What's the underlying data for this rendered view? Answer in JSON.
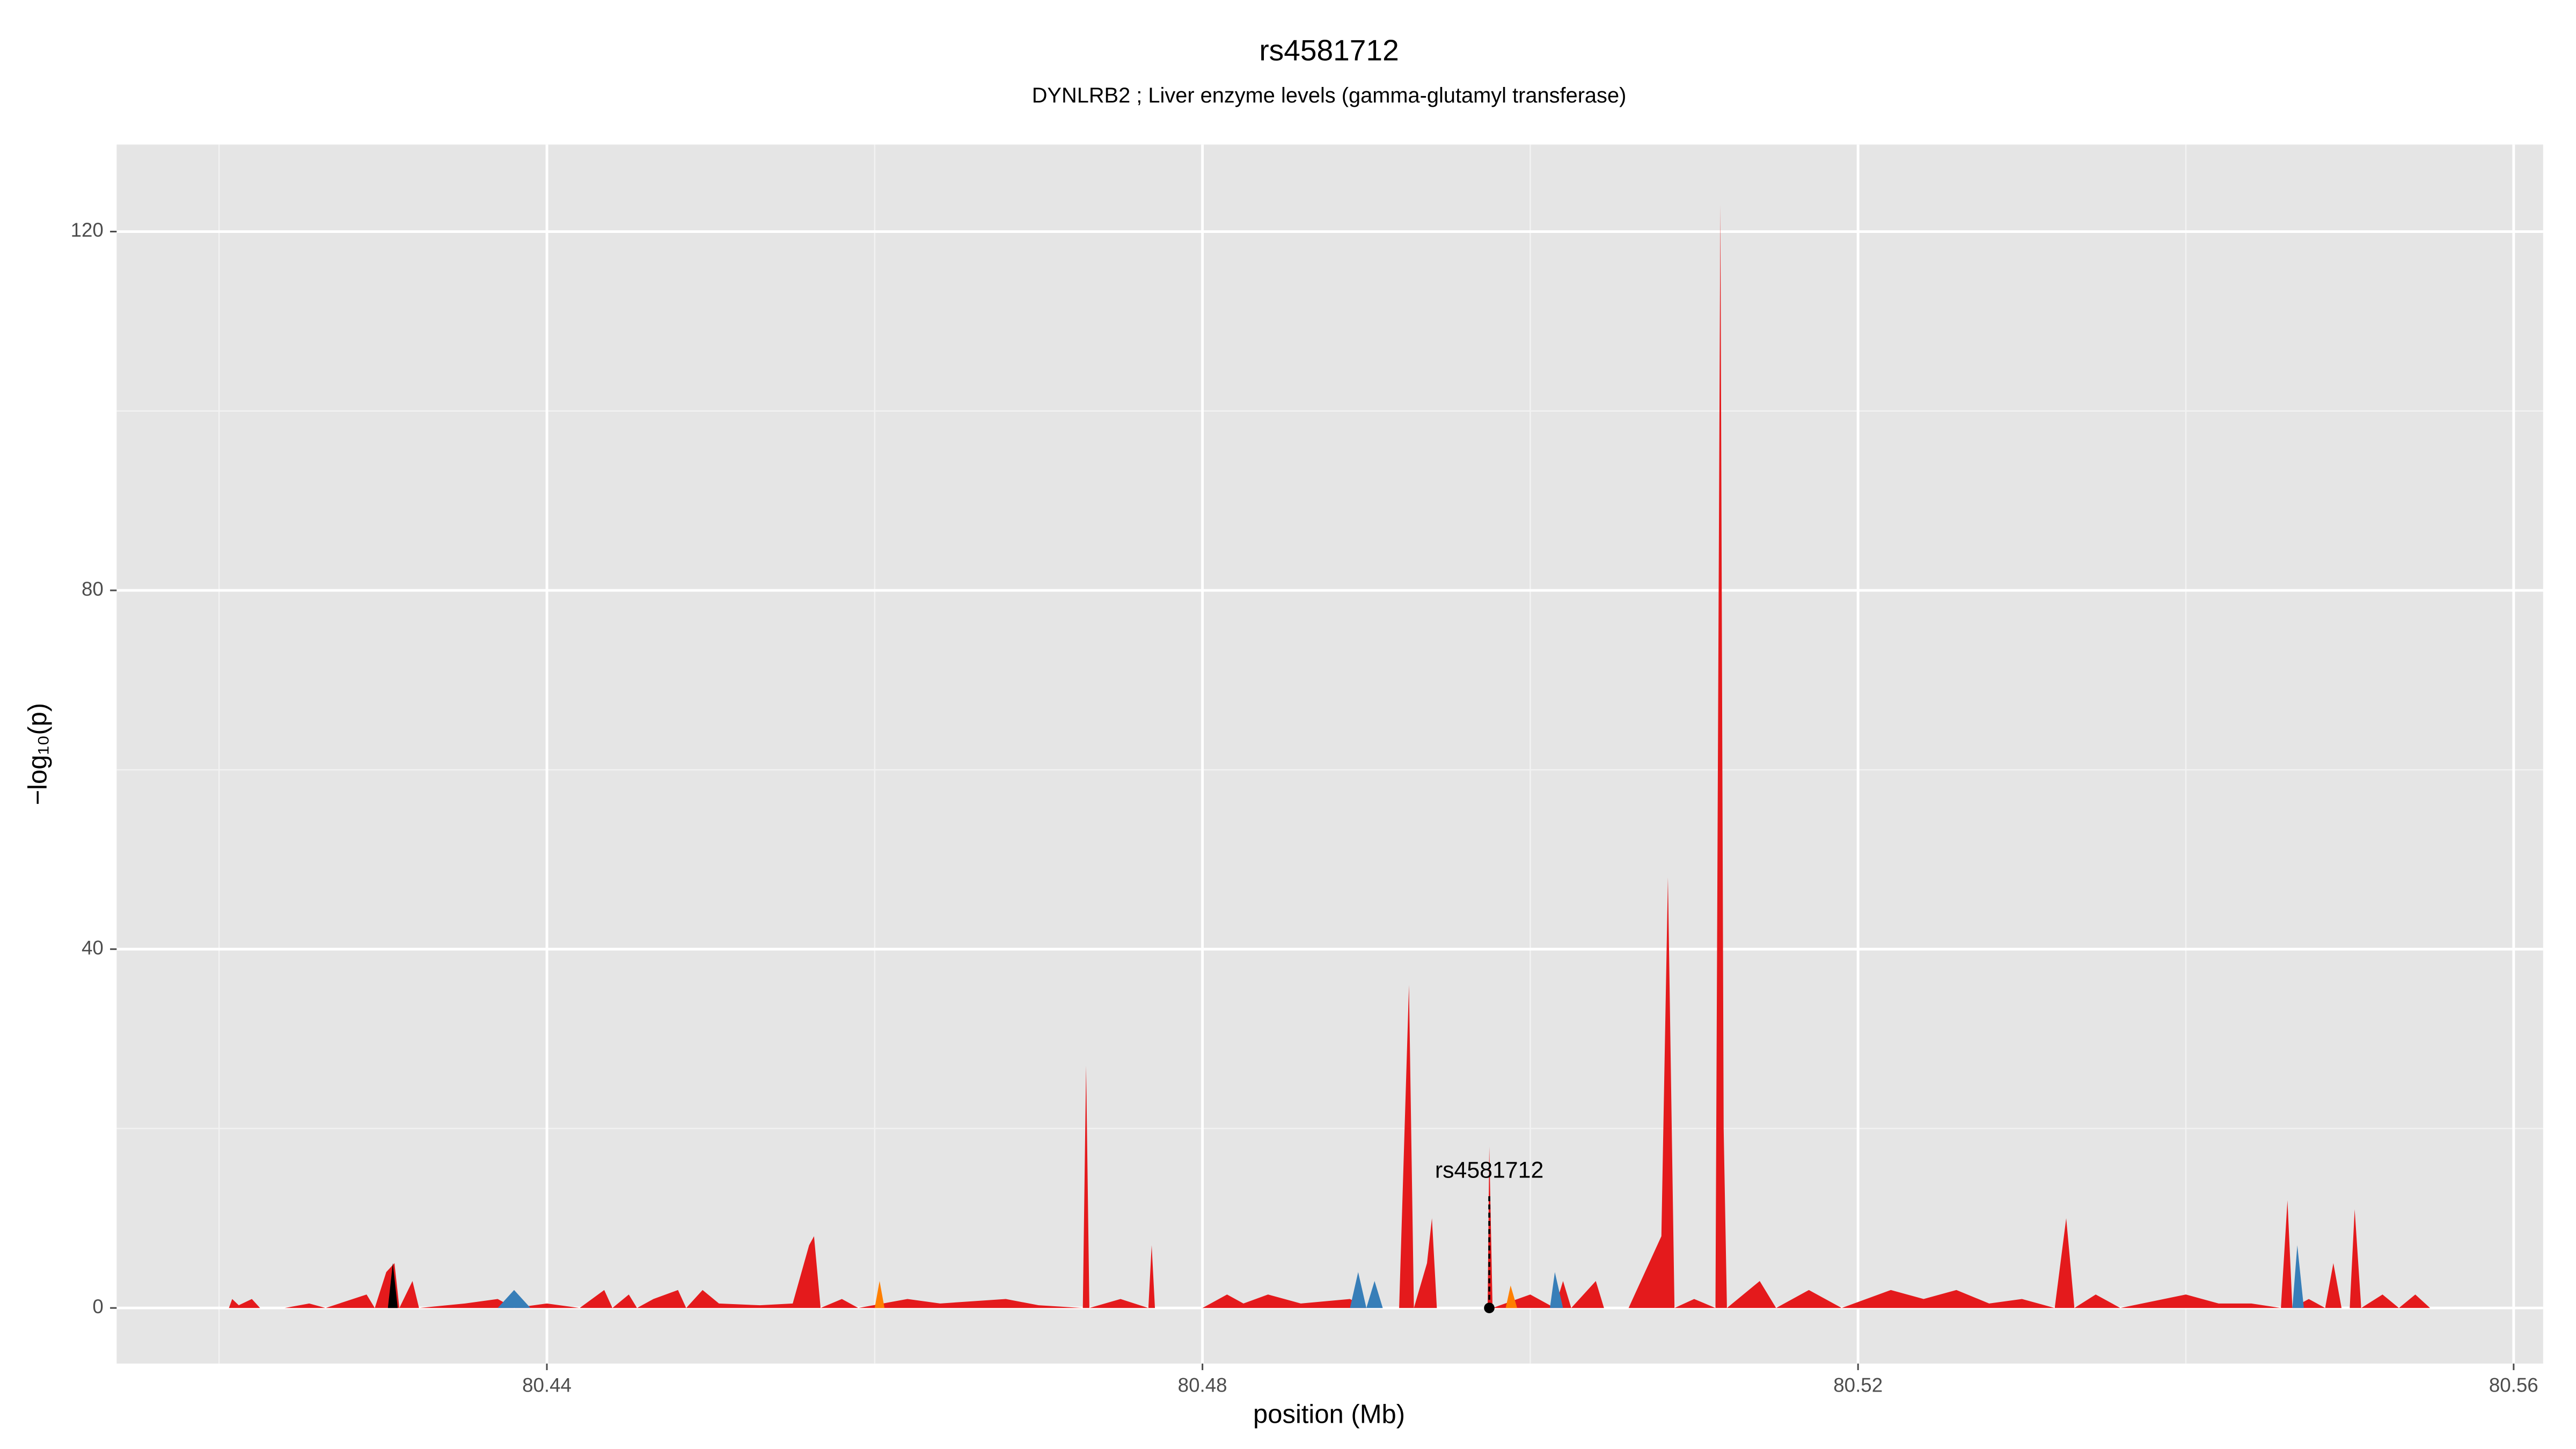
{
  "chart_data": {
    "type": "area",
    "title": "rs4581712",
    "subtitle": "DYNLRB2 ; Liver enzyme levels (gamma-glutamyl transferase)",
    "x_label": "position (Mb)",
    "y_label": "−log₁₀(p)",
    "xlim": [
      80.41375,
      80.5618
    ],
    "ylim": [
      -6.2,
      129.7
    ],
    "xticks": [
      80.44,
      80.48,
      80.52,
      80.56
    ],
    "yticks": [
      0,
      40,
      80,
      120
    ],
    "xminorticks": [
      80.42,
      80.46,
      80.5,
      80.54
    ],
    "yminorticks": [
      20,
      60,
      100
    ],
    "grid": true,
    "series": [
      {
        "color": "#e41a1c",
        "x": [
          80.4206,
          80.4208,
          80.4212,
          80.422,
          80.4225,
          80.424,
          80.4255,
          80.4265,
          80.429,
          80.4295,
          80.4302,
          80.4307,
          80.431,
          80.4318,
          80.4322,
          80.435,
          80.437,
          80.438,
          80.44,
          80.442,
          80.4435,
          80.444,
          80.445,
          80.4455,
          80.4465,
          80.448,
          80.4485,
          80.4495,
          80.4505,
          80.453,
          80.455,
          80.456,
          80.4563,
          80.4567,
          80.458,
          80.459,
          80.462,
          80.464,
          80.468,
          80.47,
          80.4727,
          80.4729,
          80.4731,
          80.475,
          80.4767,
          80.4769,
          80.4771,
          80.48,
          80.4815,
          80.4825,
          80.484,
          80.486,
          80.489,
          80.49,
          80.492,
          80.4925,
          80.4926,
          80.4929,
          80.4937,
          80.494,
          80.4943,
          80.496,
          80.4974,
          80.4975,
          80.4977,
          80.5,
          80.5015,
          80.502,
          80.5025,
          80.504,
          80.5045,
          80.506,
          80.508,
          80.5084,
          80.5088,
          80.51,
          80.5113,
          80.5116,
          80.5118,
          80.512,
          80.514,
          80.515,
          80.517,
          80.519,
          80.522,
          80.524,
          80.526,
          80.528,
          80.53,
          80.532,
          80.5327,
          80.5332,
          80.5345,
          80.536,
          80.54,
          80.542,
          80.544,
          80.5458,
          80.5462,
          80.5465,
          80.5475,
          80.5485,
          80.549,
          80.5495,
          80.55,
          80.5503,
          80.5507,
          80.552,
          80.553,
          80.554,
          80.5549
        ],
        "values": [
          0,
          1,
          0.3,
          1,
          0,
          0,
          0.5,
          0,
          1.5,
          0,
          4,
          5,
          0,
          3,
          0,
          0.5,
          1,
          0,
          0.5,
          0,
          2,
          0,
          1.5,
          0,
          1,
          2,
          0,
          2,
          0.5,
          0.3,
          0.5,
          7,
          8,
          0,
          1,
          0,
          1,
          0.5,
          1,
          0.3,
          0,
          27,
          0,
          1,
          0,
          7,
          0,
          0,
          1.5,
          0.5,
          1.5,
          0.5,
          1,
          0,
          0,
          30,
          36,
          0,
          5,
          10,
          0,
          0,
          0,
          18,
          0,
          1.5,
          0,
          3,
          0,
          3,
          0,
          0,
          8,
          48,
          0,
          1,
          0,
          123,
          20,
          0,
          3,
          0,
          2,
          0,
          2,
          1,
          2,
          0.5,
          1,
          0,
          10,
          0,
          1.5,
          0,
          1.5,
          0.5,
          0.5,
          0,
          12,
          0,
          1,
          0,
          5,
          0,
          0,
          11,
          0,
          1.5,
          0,
          1.5,
          0
        ]
      },
      {
        "color": "#377eb8",
        "x": [
          80.437,
          80.438,
          80.439,
          80.489,
          80.4895,
          80.49,
          80.4905,
          80.491,
          80.5012,
          80.5015,
          80.502,
          80.5465,
          80.5468,
          80.5472
        ],
        "values": [
          0,
          2,
          0,
          0,
          4,
          0,
          3,
          0,
          0,
          4,
          0,
          0,
          7,
          0
        ]
      },
      {
        "color": "#ff7f00",
        "x": [
          80.46,
          80.4603,
          80.4606,
          80.4985,
          80.4988,
          80.4992
        ],
        "values": [
          0,
          3,
          0,
          0,
          2.5,
          0
        ]
      },
      {
        "color": "#000000",
        "x": [
          80.4303,
          80.4306,
          80.4309
        ],
        "values": [
          0,
          5,
          0
        ]
      }
    ],
    "annotations": [
      {
        "text": "rs4581712",
        "x": 80.4975,
        "y": 0
      }
    ]
  }
}
